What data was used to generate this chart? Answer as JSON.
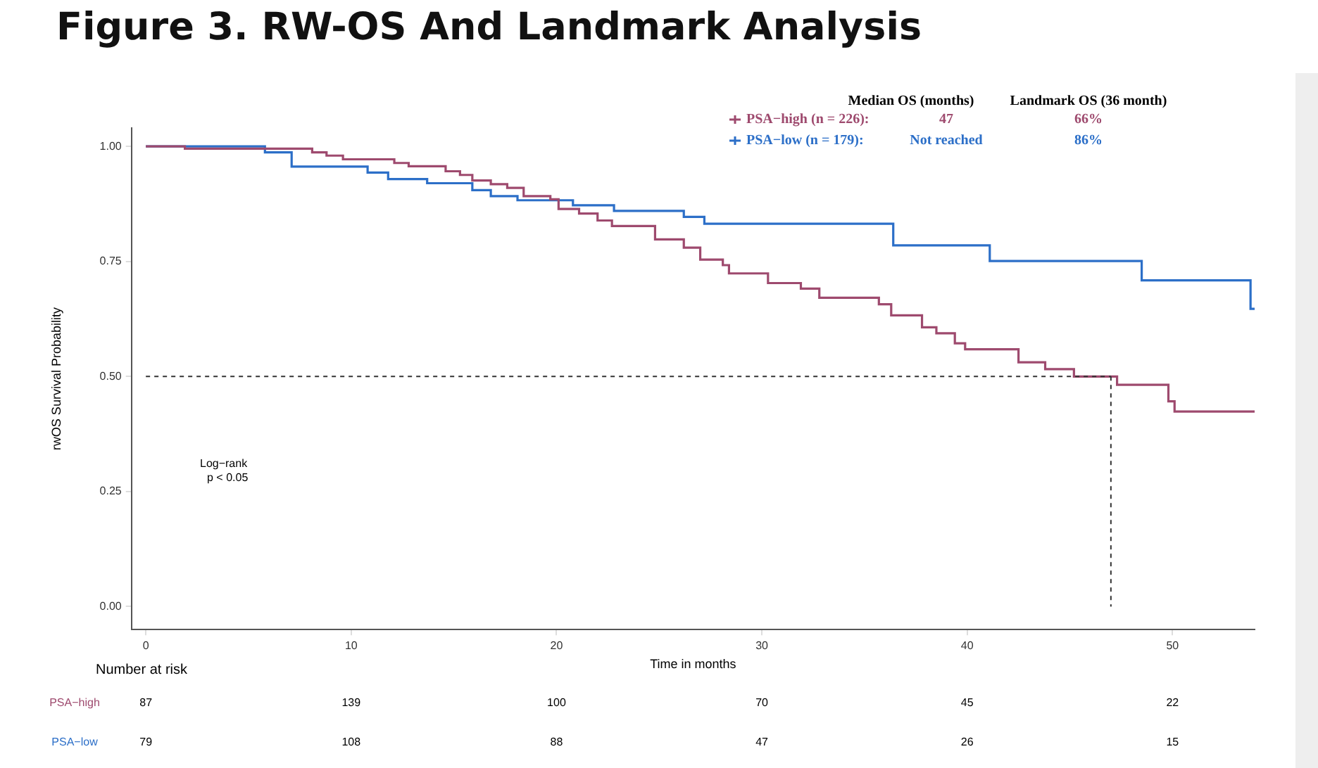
{
  "chart_data": {
    "type": "step",
    "title": "Figure 3. RW-OS And Landmark Analysis",
    "xlabel": "Time in months",
    "ylabel": "rwOS Survival Probability",
    "series": [
      {
        "name": "PSA−high (n = 226):",
        "color": "#9e4a6e",
        "x": [
          0,
          1.9,
          8.1,
          8.8,
          9.6,
          12.1,
          12.8,
          14.6,
          15.3,
          15.9,
          16.8,
          17.6,
          18.4,
          19.7,
          20.1,
          21.1,
          22.0,
          22.7,
          24.8,
          26.2,
          27.0,
          28.1,
          28.4,
          30.3,
          31.9,
          32.8,
          35.7,
          36.3,
          37.8,
          38.5,
          39.4,
          39.9,
          42.5,
          43.8,
          45.2,
          47.3,
          49.8,
          50.1,
          54
        ],
        "values": [
          1,
          0.995,
          0.987,
          0.98,
          0.972,
          0.964,
          0.957,
          0.946,
          0.938,
          0.926,
          0.918,
          0.91,
          0.892,
          0.885,
          0.864,
          0.854,
          0.839,
          0.827,
          0.798,
          0.78,
          0.754,
          0.742,
          0.724,
          0.703,
          0.691,
          0.671,
          0.657,
          0.633,
          0.607,
          0.594,
          0.572,
          0.559,
          0.531,
          0.516,
          0.5,
          0.482,
          0.446,
          0.424,
          0.424
        ]
      },
      {
        "name": "PSA−low (n = 179):",
        "color": "#2c6fc8",
        "x": [
          0,
          5.8,
          7.1,
          10.8,
          11.8,
          13.7,
          15.9,
          16.8,
          18.1,
          20.8,
          22.8,
          26.2,
          27.2,
          36.4,
          41.1,
          48.5,
          53.8,
          54
        ],
        "values": [
          1,
          0.987,
          0.956,
          0.943,
          0.929,
          0.92,
          0.905,
          0.892,
          0.883,
          0.872,
          0.86,
          0.847,
          0.832,
          0.785,
          0.751,
          0.709,
          0.647,
          0.647
        ]
      }
    ],
    "xlim": [
      -0.7,
      54
    ],
    "xticks": [
      0,
      10,
      20,
      30,
      40,
      50
    ],
    "ylim": [
      -0.05,
      1.04
    ],
    "yticks": [
      {
        "value": 0,
        "label": "0.00"
      },
      0.25,
      {
        "value": 0.5,
        "label": "0.50"
      },
      0.75,
      {
        "value": 1,
        "label": "1.00"
      }
    ],
    "ref_lines": [
      {
        "axis": "y",
        "value": 0.5,
        "line_style": "dashed"
      },
      {
        "axis": "x",
        "value": 47,
        "line_style": "dashed"
      }
    ],
    "legend": "top right",
    "grid": false,
    "annotations": [
      "Median OS (months)",
      "Landmark OS (36 month)",
      "47",
      "66%",
      "Not reached",
      "86%",
      "Log−rank",
      "p < 0.05",
      "Number at risk",
      "PSA−high",
      "87",
      "139",
      "100",
      "70",
      "45",
      "22",
      "PSA−low",
      "79",
      "108",
      "88",
      "47",
      "26",
      "15"
    ]
  }
}
